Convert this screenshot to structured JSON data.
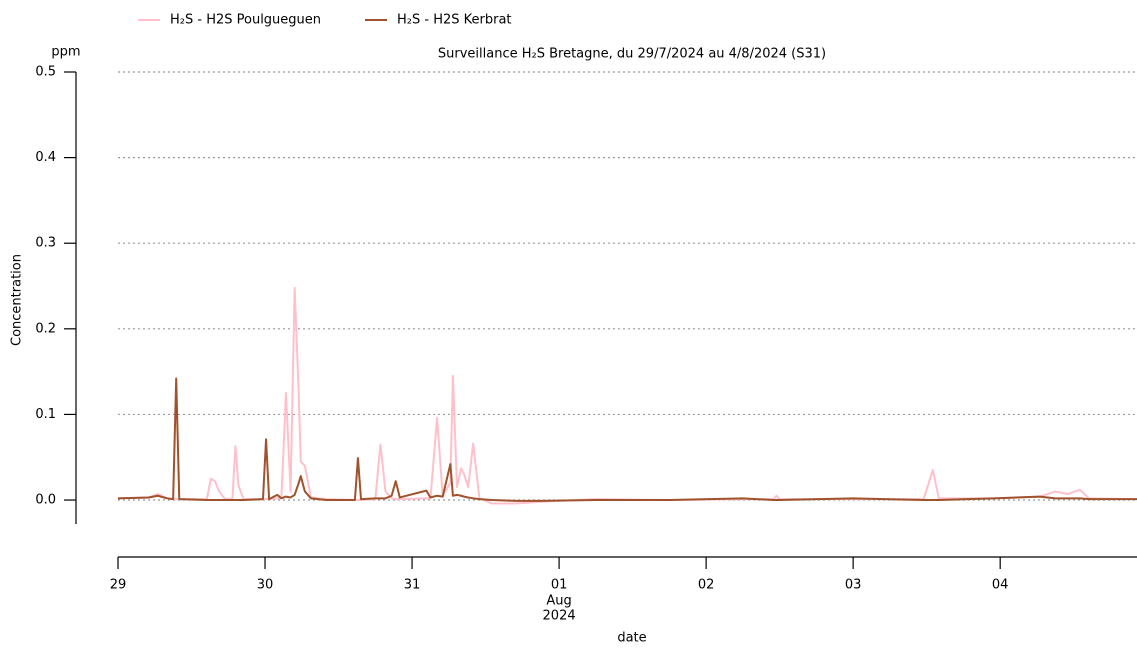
{
  "chart_data": {
    "type": "line",
    "title": "Surveillance H₂S Bretagne, du 29/7/2024 au 4/8/2024 (S31)",
    "y_unit": "ppm",
    "ylabel": "Concentration",
    "xlabel": "date",
    "xtick_month": "Aug",
    "xtick_year": "2024",
    "grid": true,
    "legend": "upper left",
    "ylim": [
      -0.028,
      0.5
    ],
    "yticks": [
      {
        "value": 0,
        "label": "0.0"
      },
      0.1,
      0.2,
      0.3,
      0.4,
      0.5
    ],
    "xlim": [
      "2024-07-29T00:00",
      "2024-08-04T22:20"
    ],
    "xticks": [
      {
        "value": "2024-07-29T00:00",
        "label": "29"
      },
      {
        "value": "2024-07-30T00:00",
        "label": "30"
      },
      {
        "value": "2024-07-31T00:00",
        "label": "31"
      },
      {
        "value": "2024-08-01T00:00",
        "label": "01"
      },
      {
        "value": "2024-08-02T00:00",
        "label": "02"
      },
      {
        "value": "2024-08-03T00:00",
        "label": "03"
      },
      {
        "value": "2024-08-04T00:00",
        "label": "04"
      }
    ],
    "x": [
      "2024-07-29T00:00",
      "2024-07-29T05:00",
      "2024-07-29T06:30",
      "2024-07-29T08:00",
      "2024-07-29T09:00",
      "2024-07-29T09:30",
      "2024-07-29T10:00",
      "2024-07-29T14:30",
      "2024-07-29T15:10",
      "2024-07-29T15:50",
      "2024-07-29T16:30",
      "2024-07-29T17:30",
      "2024-07-29T18:40",
      "2024-07-29T19:10",
      "2024-07-29T19:40",
      "2024-07-29T20:30",
      "2024-07-29T23:40",
      "2024-07-30T00:10",
      "2024-07-30T00:40",
      "2024-07-30T02:00",
      "2024-07-30T02:40",
      "2024-07-30T03:25",
      "2024-07-30T04:10",
      "2024-07-30T04:50",
      "2024-07-30T05:30",
      "2024-07-30T05:50",
      "2024-07-30T06:30",
      "2024-07-30T07:30",
      "2024-07-30T10:00",
      "2024-07-30T14:40",
      "2024-07-30T15:10",
      "2024-07-30T15:40",
      "2024-07-30T18:00",
      "2024-07-30T18:50",
      "2024-07-30T19:40",
      "2024-07-30T20:40",
      "2024-07-30T21:20",
      "2024-07-30T22:00",
      "2024-07-31T02:20",
      "2024-07-31T03:00",
      "2024-07-31T04:05",
      "2024-07-31T05:00",
      "2024-07-31T06:15",
      "2024-07-31T06:40",
      "2024-07-31T07:20",
      "2024-07-31T08:00",
      "2024-07-31T08:30",
      "2024-07-31T09:10",
      "2024-07-31T09:58",
      "2024-07-31T11:00",
      "2024-07-31T13:00",
      "2024-07-31T17:00",
      "2024-07-31T21:00",
      "2024-08-01T06:00",
      "2024-08-01T18:00",
      "2024-08-02T06:00",
      "2024-08-02T11:00",
      "2024-08-02T11:30",
      "2024-08-02T12:00",
      "2024-08-03T00:00",
      "2024-08-03T11:30",
      "2024-08-03T13:00",
      "2024-08-03T14:00",
      "2024-08-03T23:00",
      "2024-08-04T06:30",
      "2024-08-04T09:00",
      "2024-08-04T11:00",
      "2024-08-04T13:00",
      "2024-08-04T14:30",
      "2024-08-04T22:20"
    ],
    "series": [
      {
        "name": "H₂S - H2S Poulgueguen",
        "color": "#ffc0cb",
        "values": [
          0.002,
          0.003,
          0.007,
          0.002,
          0.001,
          0.001,
          0.001,
          0.001,
          0.025,
          0.022,
          0.01,
          0.001,
          0.001,
          0.063,
          0.017,
          0.001,
          0.001,
          0.001,
          0.001,
          0.002,
          0.002,
          0.125,
          0.01,
          0.248,
          0.125,
          0.045,
          0.04,
          0.003,
          0.001,
          0.0,
          0.0,
          0.0,
          0.001,
          0.065,
          0.01,
          0.002,
          0.001,
          0.001,
          0.002,
          0.002,
          0.096,
          0.005,
          0.02,
          0.145,
          0.015,
          0.037,
          0.03,
          0.015,
          0.066,
          0.002,
          -0.004,
          -0.004,
          -0.002,
          0.001,
          0.0,
          0.001,
          0.001,
          0.005,
          0.001,
          0.001,
          0.001,
          0.035,
          0.002,
          0.002,
          0.004,
          0.01,
          0.007,
          0.012,
          0.002,
          0.001
        ]
      },
      {
        "name": "H₂S - H2S Kerbrat",
        "color": "#a0522d",
        "values": [
          0.002,
          0.003,
          0.005,
          0.002,
          0.001,
          0.142,
          0.001,
          0.0,
          0.0,
          0.0,
          0.0,
          0.0,
          0.0,
          0.0,
          0.0,
          0.0,
          0.001,
          0.071,
          0.001,
          0.006,
          0.002,
          0.004,
          0.003,
          0.006,
          0.02,
          0.028,
          0.01,
          0.002,
          0.0,
          0.0,
          0.049,
          0.001,
          0.002,
          0.002,
          0.002,
          0.005,
          0.022,
          0.003,
          0.011,
          0.003,
          0.005,
          0.004,
          0.042,
          0.005,
          0.006,
          0.005,
          0.004,
          0.003,
          0.002,
          0.001,
          0.0,
          -0.001,
          -0.001,
          0.0,
          0.0,
          0.002,
          0.0,
          0.0,
          0.0,
          0.002,
          0.0,
          0.0,
          0.0,
          0.002,
          0.004,
          0.002,
          0.002,
          0.002,
          0.001,
          0.001
        ]
      }
    ]
  }
}
